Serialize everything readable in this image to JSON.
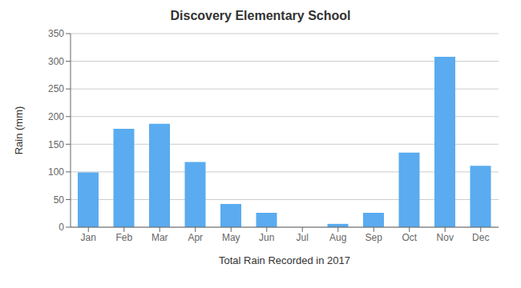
{
  "chart_data": {
    "type": "bar",
    "title": "Discovery Elementary School",
    "xlabel": "Total Rain Recorded in 2017",
    "ylabel": "Rain (mm)",
    "categories": [
      "Jan",
      "Feb",
      "Mar",
      "Apr",
      "May",
      "Jun",
      "Jul",
      "Aug",
      "Sep",
      "Oct",
      "Nov",
      "Dec"
    ],
    "values": [
      99,
      178,
      187,
      118,
      42,
      26,
      0,
      6,
      26,
      135,
      308,
      111
    ],
    "color": "#5aabef",
    "ylim": [
      0,
      350
    ],
    "yticks": [
      0,
      50,
      100,
      150,
      200,
      250,
      300,
      350
    ],
    "grid": true
  }
}
